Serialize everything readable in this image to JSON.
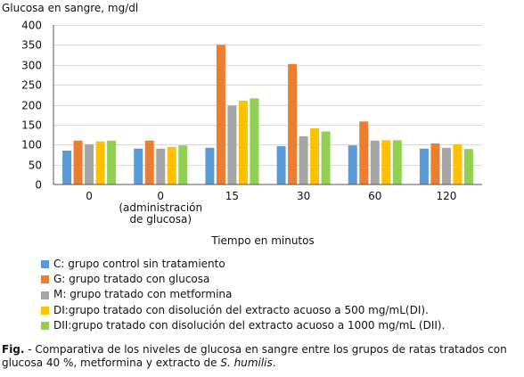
{
  "chart_data": {
    "type": "bar",
    "ylabel": "Glucosa en sangre, mg/dl",
    "xlabel": "Tiempo en minutos",
    "ylim": [
      0,
      400
    ],
    "yticks": [
      0,
      50,
      100,
      150,
      200,
      250,
      300,
      350,
      400
    ],
    "grid": true,
    "legend_position": "bottom",
    "categories": [
      [
        "0"
      ],
      [
        "0",
        "(administración",
        "de glucosa)"
      ],
      [
        "15"
      ],
      [
        "30"
      ],
      [
        "60"
      ],
      [
        "120"
      ]
    ],
    "series": [
      {
        "name": "C: grupo control sin tratamiento",
        "color": "#5b9bd5",
        "values": [
          85,
          90,
          92,
          96,
          98,
          90
        ]
      },
      {
        "name": "G: grupo tratado con glucosa",
        "color": "#ed7d31",
        "values": [
          110,
          110,
          350,
          302,
          158,
          103
        ]
      },
      {
        "name": "M: grupo tratado con metformina",
        "color": "#a5a5a5",
        "values": [
          101,
          90,
          198,
          121,
          110,
          92
        ]
      },
      {
        "name": "DI:grupo tratado con disolución del extracto acuoso a 500 mg/mL(DI).",
        "color": "#ffc000",
        "values": [
          108,
          94,
          210,
          141,
          111,
          101
        ]
      },
      {
        "name": "DII:grupo tratado con disolución del extracto acuoso a 1000 mg/mL (DII).",
        "color": "#92d050",
        "values": [
          110,
          98,
          216,
          133,
          111,
          89
        ]
      }
    ]
  },
  "caption": {
    "label": "Fig.",
    "text_before": " - Comparativa de los niveles de glucosa en sangre entre los grupos de ratas tratados con glucosa 40 %, metformina y extracto de ",
    "species": "S. humilis",
    "text_after": "."
  }
}
